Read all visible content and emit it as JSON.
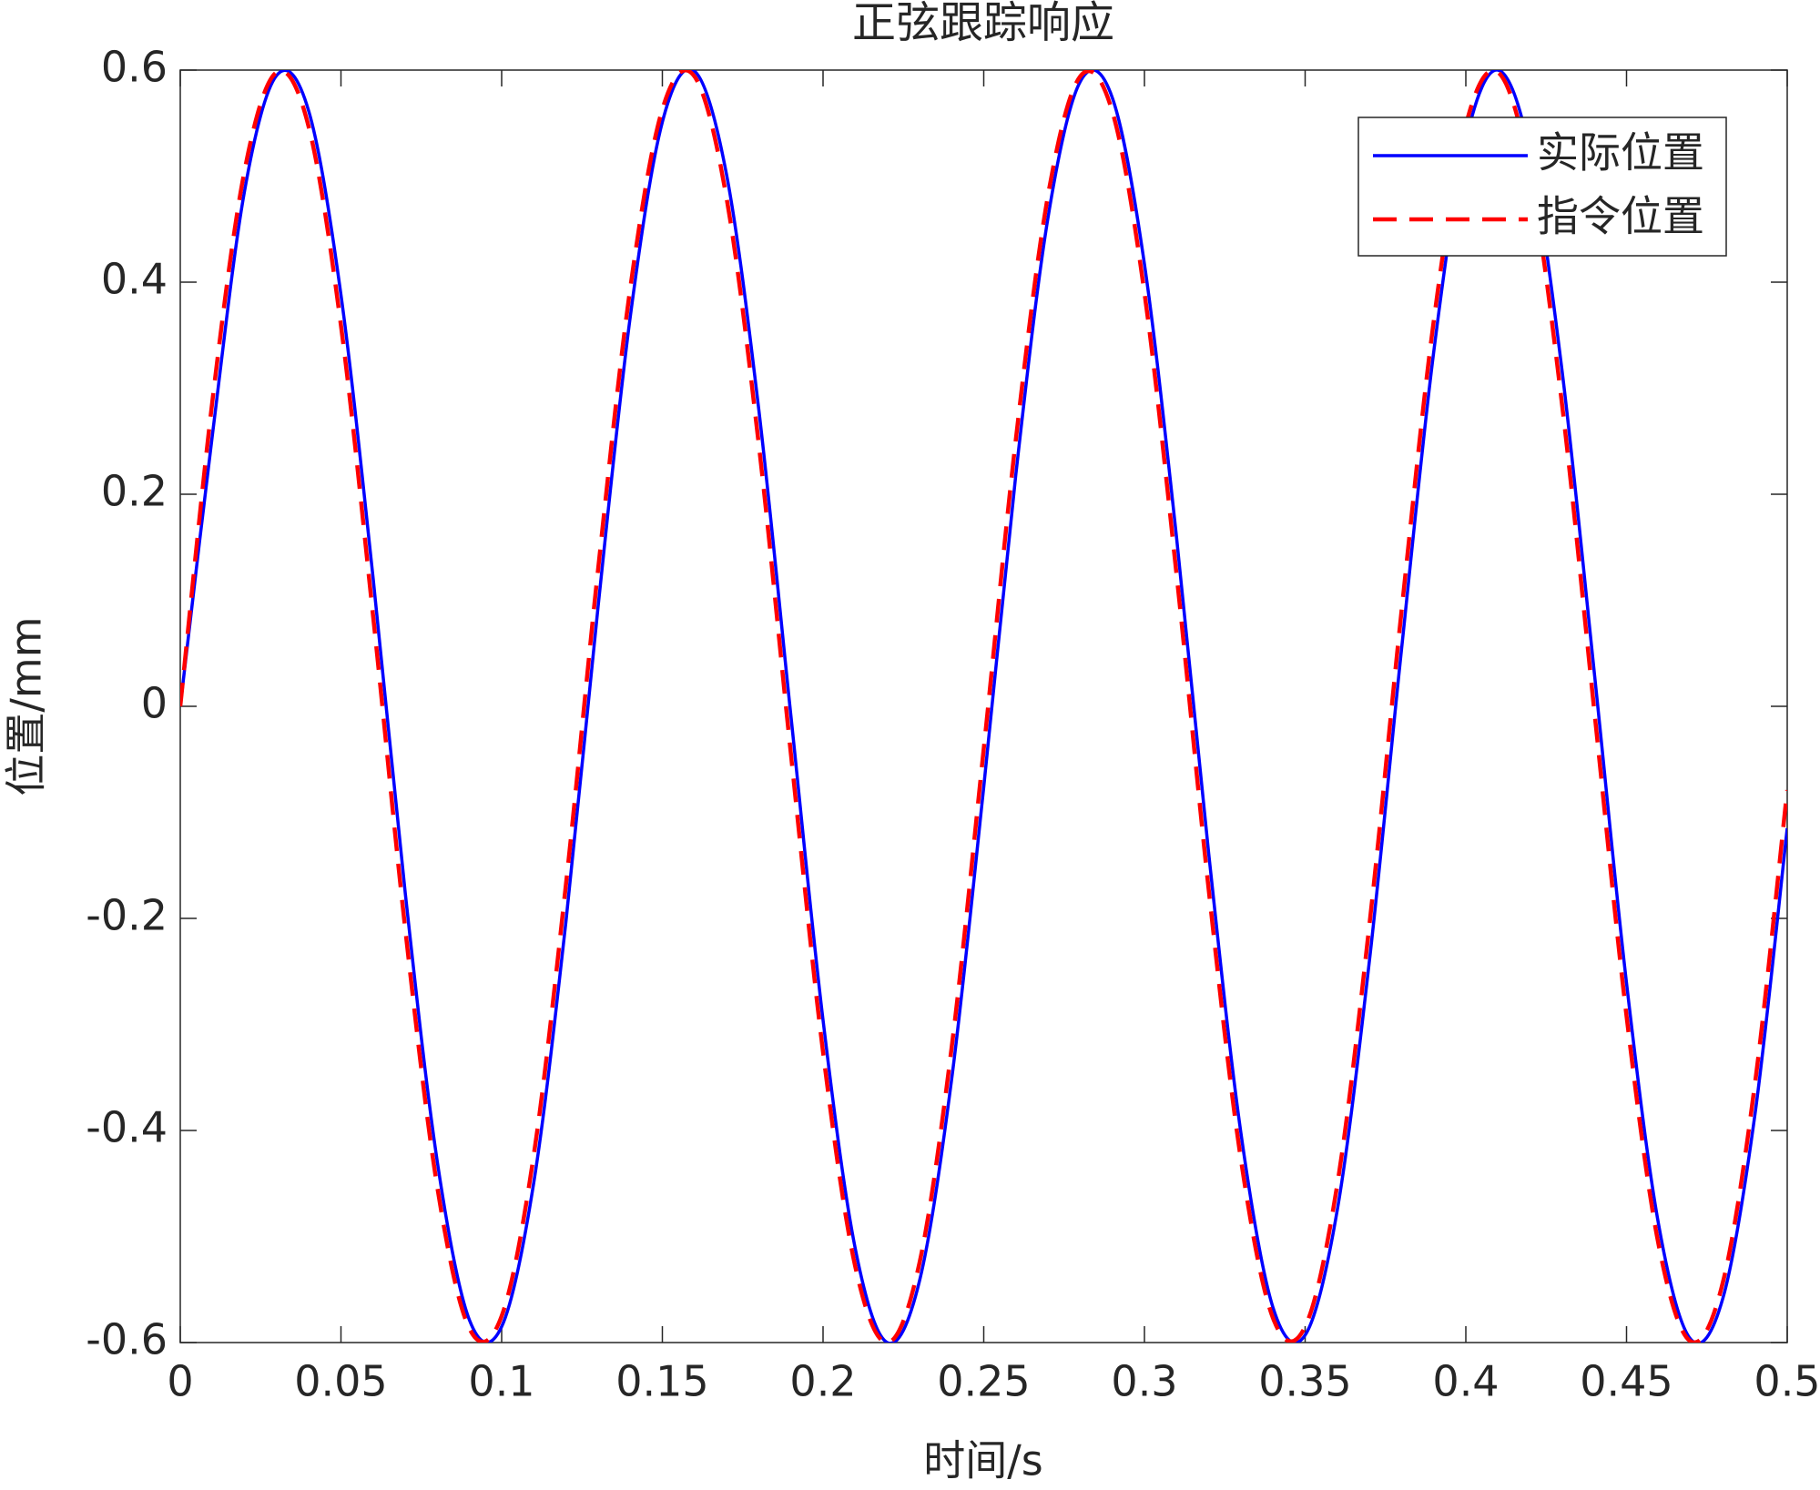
{
  "chart_data": {
    "type": "line",
    "title": "正弦跟踪响应",
    "xlabel": "时间/s",
    "ylabel": "位置/mm",
    "x": [
      0,
      0.01,
      0.02,
      0.03,
      0.04,
      0.05,
      0.06,
      0.07,
      0.08,
      0.09,
      0.1,
      0.11,
      0.12,
      0.13,
      0.14,
      0.15,
      0.16,
      0.17,
      0.18,
      0.19,
      0.2,
      0.21,
      0.22,
      0.23,
      0.24,
      0.25,
      0.26,
      0.27,
      0.28,
      0.29,
      0.3,
      0.31,
      0.32,
      0.33,
      0.34,
      0.35,
      0.36,
      0.37,
      0.38,
      0.39,
      0.4,
      0.41,
      0.42,
      0.43,
      0.44,
      0.45,
      0.46,
      0.47,
      0.48,
      0.49,
      0.5
    ],
    "series": [
      {
        "name": "实际位置",
        "color": "#0000ff",
        "dash": "solid",
        "values": [
          0,
          0.256,
          0.486,
          0.595,
          0.561,
          0.388,
          0.121,
          -0.176,
          -0.43,
          -0.579,
          -0.585,
          -0.449,
          -0.203,
          0.094,
          0.367,
          0.551,
          0.599,
          0.501,
          0.28,
          -0.009,
          -0.296,
          -0.511,
          -0.6,
          -0.542,
          -0.352,
          -0.076,
          0.219,
          0.461,
          0.589,
          0.574,
          0.417,
          0.159,
          -0.139,
          -0.402,
          -0.567,
          -0.593,
          -0.475,
          -0.24,
          0.054,
          0.334,
          0.533,
          0.6,
          0.522,
          0.315,
          0.031,
          -0.261,
          -0.489,
          -0.597,
          -0.558,
          -0.384,
          -0.115
        ]
      },
      {
        "name": "指令位置",
        "color": "#ff0000",
        "dash": "dashed",
        "values": [
          0,
          0.288,
          0.505,
          0.598,
          0.546,
          0.359,
          0.085,
          -0.21,
          -0.454,
          -0.587,
          -0.575,
          -0.423,
          -0.168,
          0.129,
          0.394,
          0.563,
          0.594,
          0.479,
          0.247,
          -0.045,
          -0.326,
          -0.528,
          -0.6,
          -0.525,
          -0.322,
          -0.04,
          0.252,
          0.482,
          0.594,
          0.561,
          0.39,
          0.124,
          -0.173,
          -0.427,
          -0.577,
          -0.585,
          -0.451,
          -0.206,
          0.09,
          0.363,
          0.548,
          0.598,
          0.502,
          0.283,
          -0.005,
          -0.292,
          -0.508,
          -0.599,
          -0.543,
          -0.355,
          -0.079
        ]
      }
    ],
    "xlim": [
      0,
      0.5
    ],
    "xticks": [
      0,
      0.05,
      0.1,
      0.15,
      0.2,
      0.25,
      0.3,
      0.35,
      0.4,
      0.45,
      0.5
    ],
    "ylim": [
      -0.6,
      0.6
    ],
    "yticks": [
      -0.6,
      -0.4,
      -0.2,
      0,
      0.2,
      0.4,
      0.6
    ],
    "grid": false,
    "legend": "upper right"
  }
}
